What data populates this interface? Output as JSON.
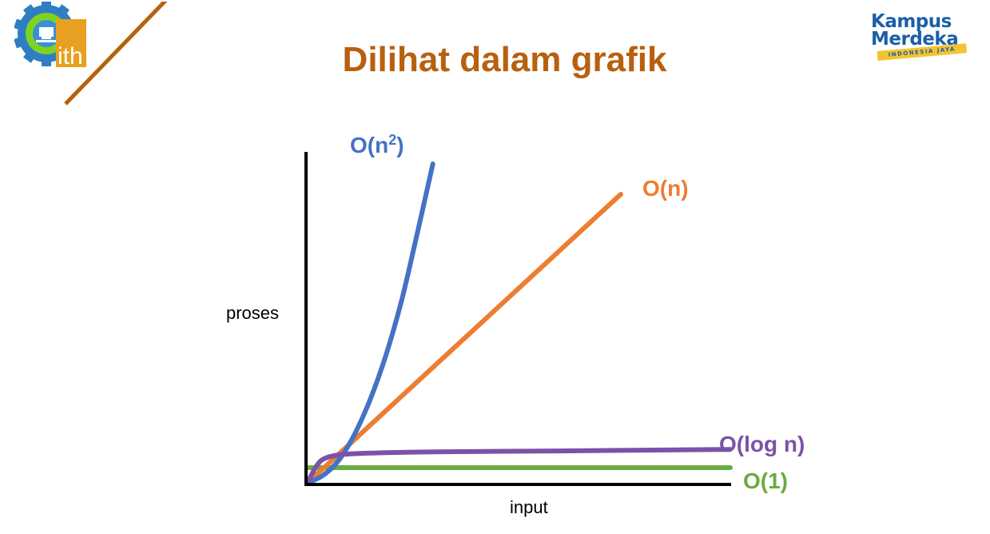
{
  "slide": {
    "title": "Dilihat dalam grafik",
    "title_color": "#b8600f"
  },
  "logos": {
    "left": {
      "text": "ith",
      "gear_color": "#2f7ec3",
      "accent_color": "#e8a020",
      "line_color": "#b8600f"
    },
    "right": {
      "word1": "Kampus",
      "word2": "Merdeka",
      "tagline": "INDONESIA JAYA",
      "word_color": "#1a5fa8",
      "band_color": "#f4c430"
    }
  },
  "chart_data": {
    "type": "line",
    "title": "",
    "xlabel": "input",
    "ylabel": "proses",
    "grid": false,
    "legend": "labels at line ends",
    "series": [
      {
        "name": "O(n²)",
        "name_base": "O(n",
        "name_sup": "2",
        "name_end": ")",
        "color": "#4472c4",
        "shape": "quadratic",
        "points": [
          [
            0,
            0
          ],
          [
            0.5,
            2.5
          ],
          [
            1,
            7.5
          ],
          [
            1.5,
            16
          ],
          [
            2,
            27.5
          ],
          [
            2.5,
            42
          ],
          [
            3,
            60
          ],
          [
            3.5,
            82
          ],
          [
            4,
            105
          ]
        ]
      },
      {
        "name": "O(n)",
        "color": "#ed7d31",
        "shape": "linear",
        "points": [
          [
            0,
            0
          ],
          [
            10,
            95
          ]
        ]
      },
      {
        "name": "O(log n)",
        "color": "#7a52a8",
        "shape": "logarithmic",
        "points": [
          [
            0,
            0
          ],
          [
            0.25,
            5
          ],
          [
            0.5,
            7.8
          ],
          [
            1,
            9.2
          ],
          [
            2,
            9.8
          ],
          [
            4,
            10.2
          ],
          [
            8,
            10.5
          ],
          [
            13.5,
            11
          ]
        ]
      },
      {
        "name": "O(1)",
        "color": "#6aab43",
        "shape": "constant",
        "points": [
          [
            0,
            5
          ],
          [
            13.5,
            5
          ]
        ]
      }
    ],
    "axis_color": "#000000",
    "xlim": [
      0,
      13.5
    ],
    "ylim": [
      0,
      105
    ]
  }
}
